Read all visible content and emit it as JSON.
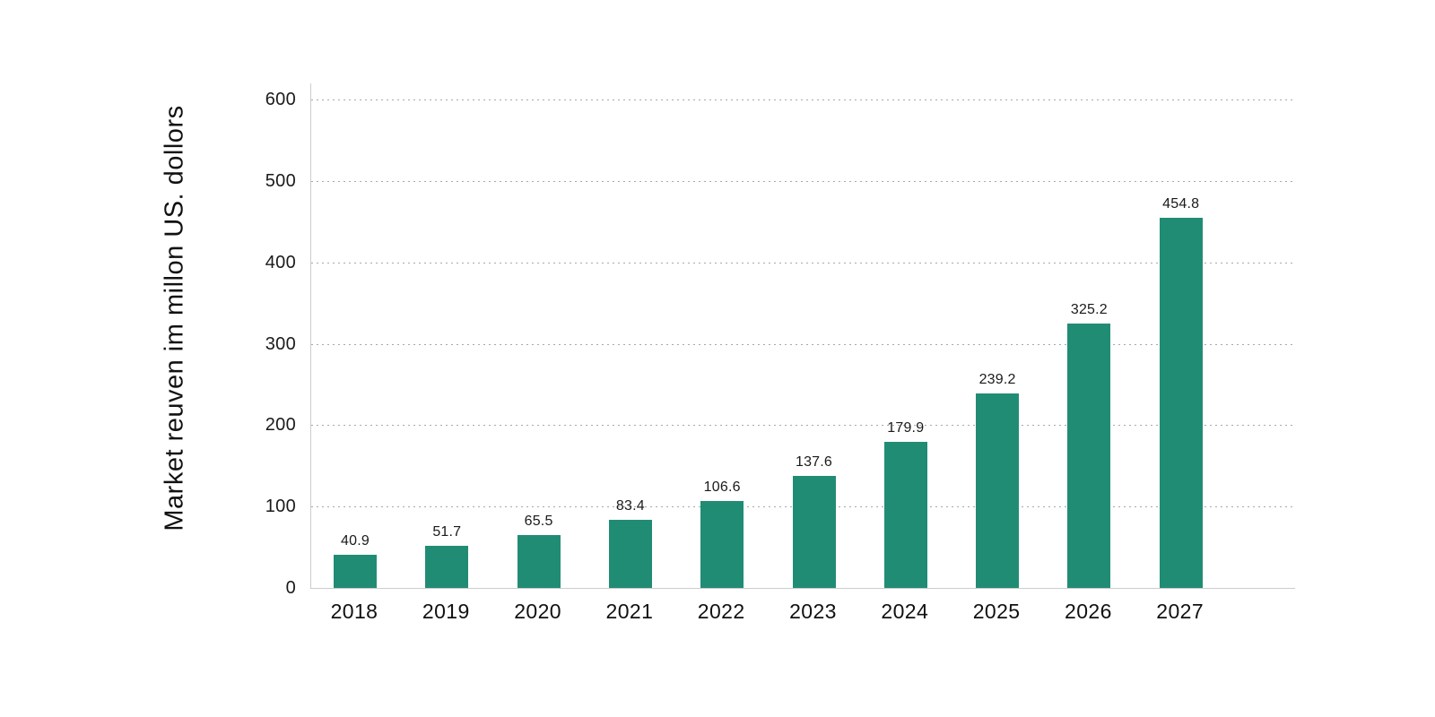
{
  "chart_data": {
    "type": "bar",
    "title": "",
    "xlabel": "",
    "ylabel": "Market reuven im millon US. dollors",
    "categories": [
      "2018",
      "2019",
      "2020",
      "2021",
      "2022",
      "2023",
      "2024",
      "2025",
      "2026",
      "2027"
    ],
    "values": [
      40.9,
      51.7,
      65.5,
      83.4,
      106.6,
      137.6,
      179.9,
      239.2,
      325.2,
      454.8
    ],
    "value_labels": [
      "40.9",
      "51.7",
      "65.5",
      "83.4",
      "106.6",
      "137.6",
      "179.9",
      "239.2",
      "325.2",
      "454.8"
    ],
    "ylim": [
      0,
      600
    ],
    "yticks": [
      0,
      100,
      200,
      300,
      400,
      500,
      600
    ],
    "ytick_labels": [
      "0",
      "100",
      "200",
      "300",
      "400",
      "500",
      "600"
    ],
    "grid": "horizontal-dotted",
    "legend": "none",
    "colors": {
      "bar": "#218c74",
      "background": "#ffffff",
      "text": "#111111",
      "axis_line": "#cccccc",
      "gridline": "#a8a8a8"
    }
  }
}
